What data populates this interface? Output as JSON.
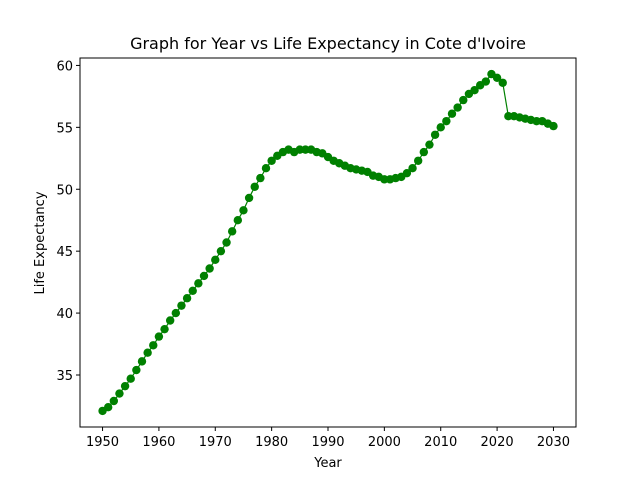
{
  "chart_data": {
    "type": "line",
    "title": "Graph for Year vs Life Expectancy in Cote d'Ivoire",
    "xlabel": "Year",
    "ylabel": "Life Expectancy",
    "xlim": [
      1946,
      2034
    ],
    "ylim": [
      30.8,
      60.6
    ],
    "xticks": [
      1950,
      1960,
      1970,
      1980,
      1990,
      2000,
      2010,
      2020,
      2030
    ],
    "yticks": [
      35,
      40,
      45,
      50,
      55,
      60
    ],
    "grid": false,
    "color": "#008000",
    "marker": "circle",
    "x": [
      1950,
      1951,
      1952,
      1953,
      1954,
      1955,
      1956,
      1957,
      1958,
      1959,
      1960,
      1961,
      1962,
      1963,
      1964,
      1965,
      1966,
      1967,
      1968,
      1969,
      1970,
      1971,
      1972,
      1973,
      1974,
      1975,
      1976,
      1977,
      1978,
      1979,
      1980,
      1981,
      1982,
      1983,
      1984,
      1985,
      1986,
      1987,
      1988,
      1989,
      1990,
      1991,
      1992,
      1993,
      1994,
      1995,
      1996,
      1997,
      1998,
      1999,
      2000,
      2001,
      2002,
      2003,
      2004,
      2005,
      2006,
      2007,
      2008,
      2009,
      2010,
      2011,
      2012,
      2013,
      2014,
      2015,
      2016,
      2017,
      2018,
      2019,
      2020,
      2021,
      2022,
      2023,
      2024,
      2025,
      2026,
      2027,
      2028,
      2029,
      2030
    ],
    "y": [
      32.1,
      32.4,
      32.9,
      33.5,
      34.1,
      34.7,
      35.4,
      36.1,
      36.8,
      37.4,
      38.1,
      38.7,
      39.4,
      40.0,
      40.6,
      41.2,
      41.8,
      42.4,
      43.0,
      43.6,
      44.3,
      45.0,
      45.7,
      46.6,
      47.5,
      48.3,
      49.3,
      50.2,
      50.9,
      51.7,
      52.3,
      52.7,
      53.0,
      53.2,
      53.0,
      53.2,
      53.2,
      53.2,
      53.0,
      52.9,
      52.6,
      52.3,
      52.1,
      51.9,
      51.7,
      51.6,
      51.5,
      51.4,
      51.1,
      51.0,
      50.8,
      50.8,
      50.9,
      51.0,
      51.3,
      51.7,
      52.3,
      53.0,
      53.6,
      54.4,
      55.0,
      55.5,
      56.1,
      56.6,
      57.2,
      57.7,
      58.0,
      58.4,
      58.7,
      59.3,
      59.0,
      58.6,
      55.9,
      55.9,
      55.8,
      55.7,
      55.6,
      55.5,
      55.5,
      55.3,
      55.1
    ]
  }
}
